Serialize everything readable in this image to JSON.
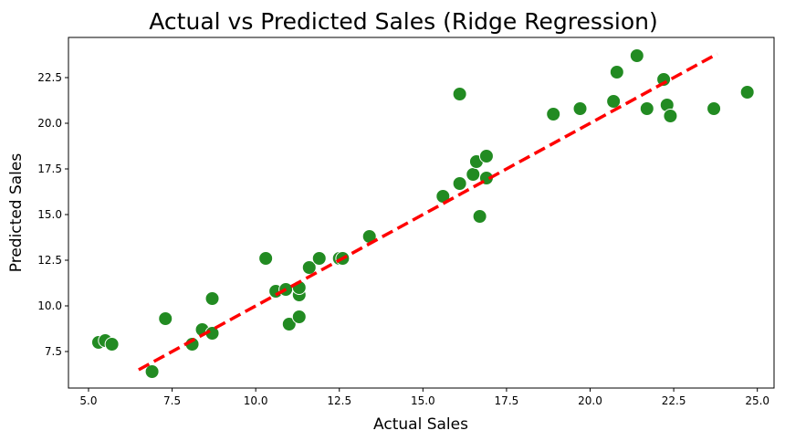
{
  "chart_data": {
    "type": "scatter",
    "title": "Actual vs Predicted Sales (Ridge Regression)",
    "xlabel": "Actual Sales",
    "ylabel": "Predicted Sales",
    "xlim": [
      4.4,
      25.5
    ],
    "ylim": [
      5.5,
      24.7
    ],
    "xticks": [
      5.0,
      7.5,
      10.0,
      12.5,
      15.0,
      17.5,
      20.0,
      22.5,
      25.0
    ],
    "xtick_labels": [
      "5.0",
      "7.5",
      "10.0",
      "12.5",
      "15.0",
      "17.5",
      "20.0",
      "22.5",
      "25.0"
    ],
    "yticks": [
      7.5,
      10.0,
      12.5,
      15.0,
      17.5,
      20.0,
      22.5
    ],
    "ytick_labels": [
      "7.5",
      "10.0",
      "12.5",
      "15.0",
      "17.5",
      "20.0",
      "22.5"
    ],
    "grid": false,
    "legend": "none",
    "point_color": "#228b22",
    "line_color": "#ff0000",
    "points": [
      {
        "x": 5.3,
        "y": 8.0
      },
      {
        "x": 5.5,
        "y": 8.1
      },
      {
        "x": 5.7,
        "y": 7.9
      },
      {
        "x": 6.9,
        "y": 6.4
      },
      {
        "x": 7.3,
        "y": 9.3
      },
      {
        "x": 8.1,
        "y": 7.9
      },
      {
        "x": 8.4,
        "y": 8.7
      },
      {
        "x": 8.7,
        "y": 8.5
      },
      {
        "x": 8.7,
        "y": 10.4
      },
      {
        "x": 10.3,
        "y": 12.6
      },
      {
        "x": 10.6,
        "y": 10.8
      },
      {
        "x": 10.9,
        "y": 10.9
      },
      {
        "x": 11.0,
        "y": 9.0
      },
      {
        "x": 11.3,
        "y": 10.6
      },
      {
        "x": 11.3,
        "y": 11.0
      },
      {
        "x": 11.3,
        "y": 9.4
      },
      {
        "x": 11.6,
        "y": 12.1
      },
      {
        "x": 11.9,
        "y": 12.6
      },
      {
        "x": 12.5,
        "y": 12.6
      },
      {
        "x": 12.6,
        "y": 12.6
      },
      {
        "x": 13.4,
        "y": 13.8
      },
      {
        "x": 15.6,
        "y": 16.0
      },
      {
        "x": 16.1,
        "y": 16.7
      },
      {
        "x": 16.1,
        "y": 21.6
      },
      {
        "x": 16.5,
        "y": 17.2
      },
      {
        "x": 16.6,
        "y": 17.9
      },
      {
        "x": 16.7,
        "y": 14.9
      },
      {
        "x": 16.9,
        "y": 18.2
      },
      {
        "x": 16.9,
        "y": 17.0
      },
      {
        "x": 18.9,
        "y": 20.5
      },
      {
        "x": 19.7,
        "y": 20.8
      },
      {
        "x": 20.7,
        "y": 21.2
      },
      {
        "x": 20.8,
        "y": 22.8
      },
      {
        "x": 21.4,
        "y": 23.7
      },
      {
        "x": 21.7,
        "y": 20.8
      },
      {
        "x": 22.2,
        "y": 22.4
      },
      {
        "x": 22.3,
        "y": 21.0
      },
      {
        "x": 22.4,
        "y": 20.4
      },
      {
        "x": 23.7,
        "y": 20.8
      },
      {
        "x": 24.7,
        "y": 21.7
      }
    ],
    "reference_line": {
      "x": [
        6.5,
        23.8
      ],
      "y": [
        6.5,
        23.8
      ],
      "style": "dashed"
    }
  }
}
